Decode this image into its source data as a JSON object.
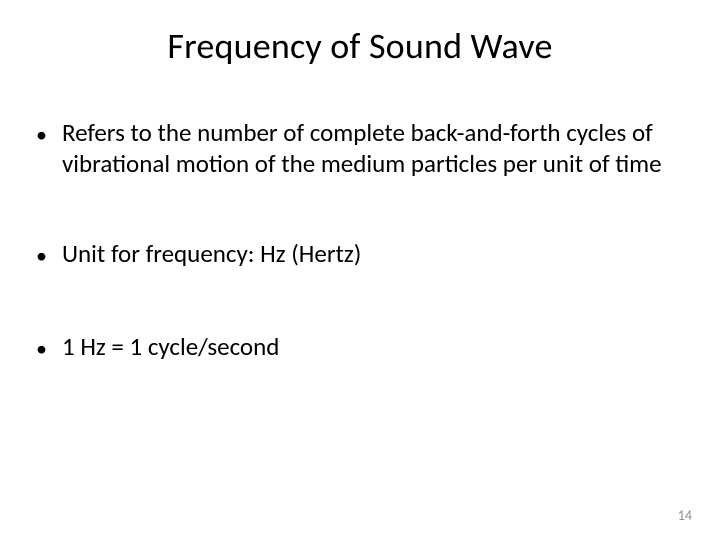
{
  "slide": {
    "title": "Frequency of Sound Wave",
    "bullets": [
      "Refers to the number of complete back-and-forth cycles of vibrational motion of the medium particles per unit of time",
      "Unit for frequency: Hz (Hertz)",
      "1 Hz = 1 cycle/second"
    ],
    "page_number": "14"
  },
  "style": {
    "background_color": "#ffffff",
    "text_color": "#000000",
    "title_fontsize": 36,
    "body_fontsize": 25,
    "page_num_color": "#8c8c8c",
    "font_family": "Calibri"
  }
}
